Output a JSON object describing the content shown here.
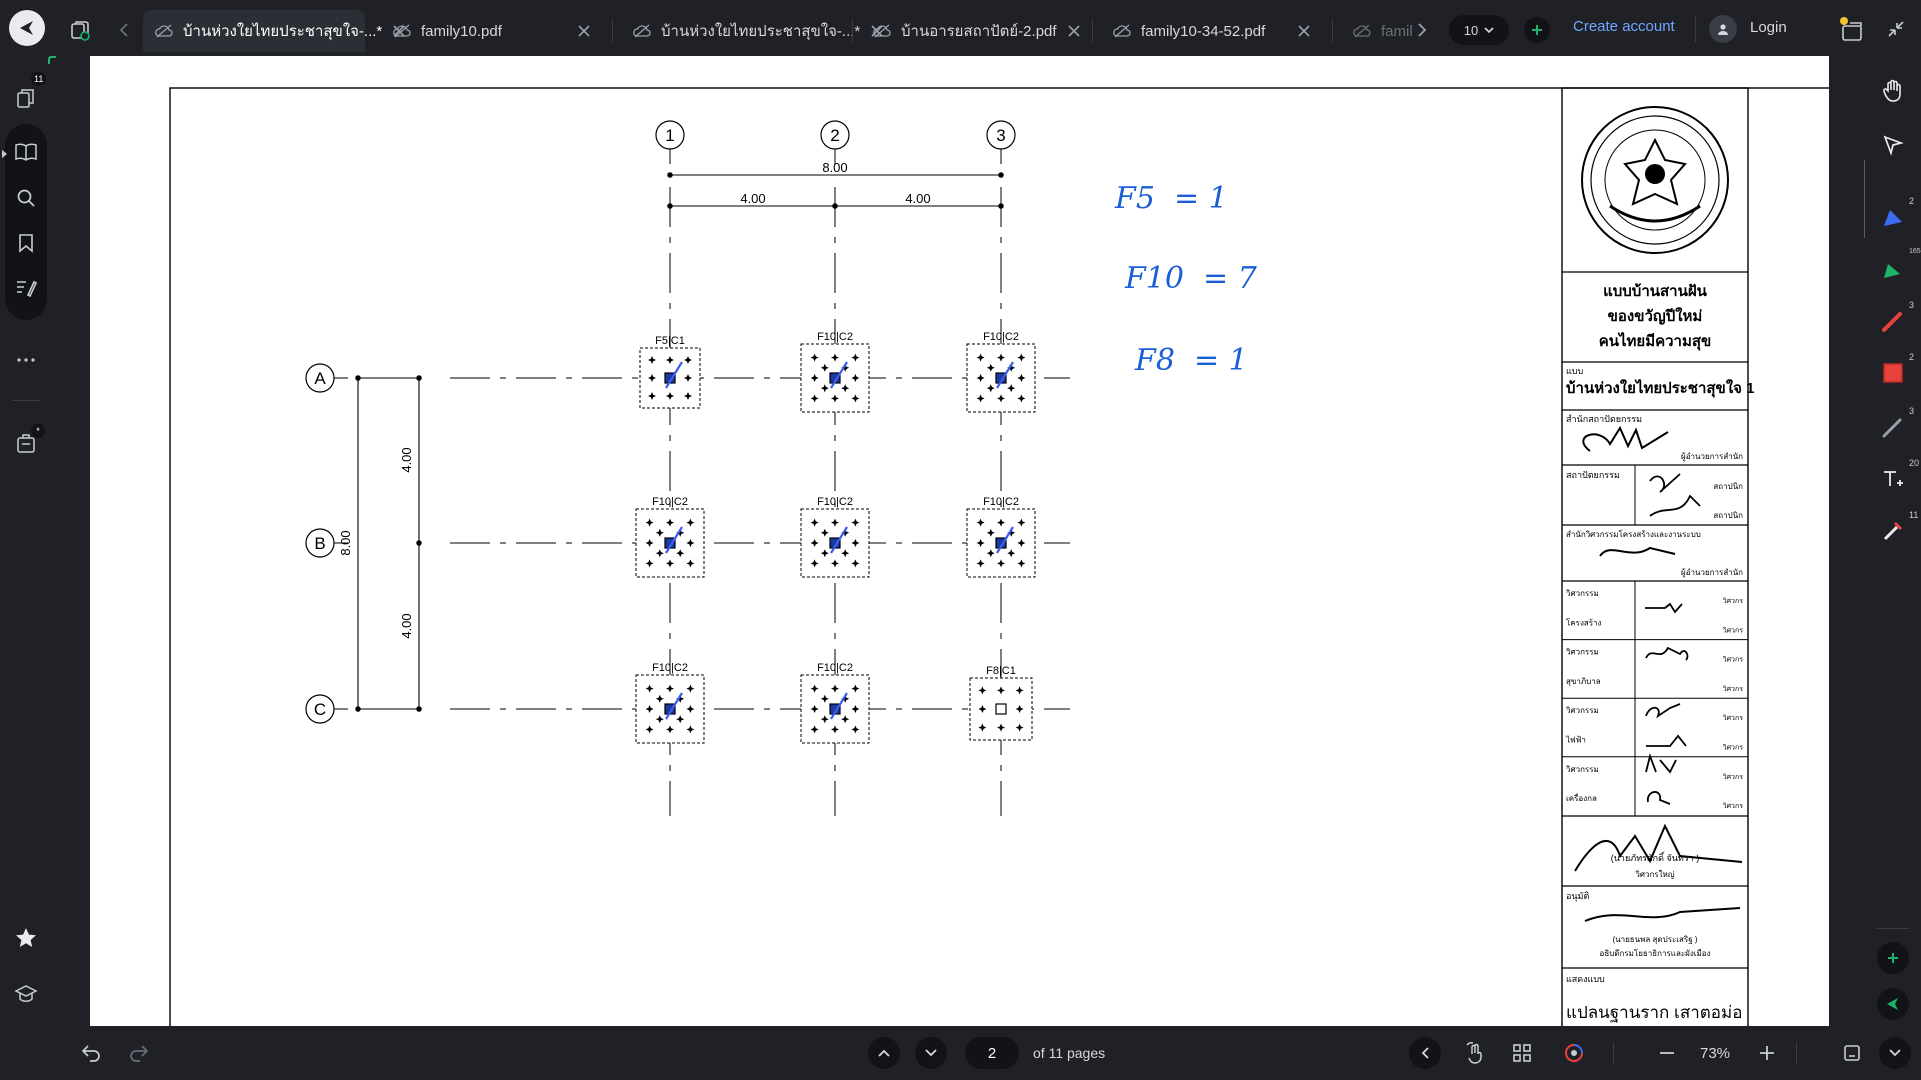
{
  "tabs": [
    {
      "label": "บ้านห่วงใยไทยประชาสุขใจ-...*",
      "active": true
    },
    {
      "label": "family10.pdf",
      "active": false
    },
    {
      "label": "บ้านห่วงใยไทยประชาสุขใจ-...*",
      "active": false
    },
    {
      "label": "บ้านอารยสถาปัตย์-2.pdf",
      "active": false
    },
    {
      "label": "family10-34-52.pdf",
      "active": false
    },
    {
      "label": "famil",
      "active": false
    }
  ],
  "tab_count": "10",
  "header": {
    "create_account": "Create account",
    "login": "Login"
  },
  "left_badges": {
    "pages": "11",
    "stamp": "*"
  },
  "right_counts": {
    "pen_blue": "2",
    "highlighter_green": "165",
    "pen_red": "3",
    "rect_red": "2",
    "pencil": "3",
    "text": "20",
    "eraser": "11"
  },
  "pagination": {
    "current_page": "2",
    "total_label": "of 11 pages"
  },
  "zoom": "73%",
  "drawing": {
    "grid_cols": [
      "1",
      "2",
      "3"
    ],
    "grid_rows": [
      "A",
      "B",
      "C"
    ],
    "dim_total_h": "8.00",
    "dim_h_1": "4.00",
    "dim_h_2": "4.00",
    "dim_total_v": "8.00",
    "dim_v_1": "4.00",
    "dim_v_2": "4.00",
    "footings": [
      {
        "label": "F5|C1"
      },
      {
        "label": "F10|C2"
      },
      {
        "label": "F10|C2"
      },
      {
        "label": "F10|C2"
      },
      {
        "label": "F10|C2"
      },
      {
        "label": "F10|C2"
      },
      {
        "label": "F10|C2"
      },
      {
        "label": "F10|C2"
      },
      {
        "label": "F8|C1"
      }
    ],
    "handwritten_notes": [
      "F5  = 1",
      "F10  = 7",
      "F8  = 1"
    ]
  },
  "title_block": {
    "project_title_lines": [
      "แบบบ้านสานฝัน",
      "ของขวัญปีใหม่",
      "คนไทยมีความสุข"
    ],
    "model_label": "แบบ",
    "model_name": "บ้านห่วงใยไทยประชาสุขใจ 1",
    "office_arch": "สำนักสถาปัตยกรรม",
    "office_arch_role": "ผู้อำนวยการสำนัก",
    "architects": "สถาปัตยกรรม",
    "architect_role_1": "สถาปนิก",
    "architect_role_2": "สถาปนิก",
    "office_eng": "สำนักวิศวกรรมโครงสร้างและงานระบบ",
    "office_eng_role": "ผู้อำนวยการสำนัก",
    "eng_rows": [
      {
        "left": "วิศวกรรม",
        "right": "วิศวกร"
      },
      {
        "left": "โครงสร้าง",
        "right": "วิศวกร"
      },
      {
        "left": "วิศวกรรม",
        "right": "วิศวกร"
      },
      {
        "left": "สุขาภิบาล",
        "right": "วิศวกร"
      },
      {
        "left": "วิศวกรรม",
        "right": "วิศวกร"
      },
      {
        "left": "ไฟฟ้า",
        "right": "วิศวกร"
      },
      {
        "left": "วิศวกรรม",
        "right": "วิศวกร"
      },
      {
        "left": "เครื่องกล",
        "right": "วิศวกร"
      }
    ],
    "chief_name": "(นายภัทรศักดิ์  จันทรา )",
    "chief_role": "วิศวกรใหญ่",
    "approve_label": "อนุมัติ",
    "approver_name": "(นายธนพล  สุดประเสริฐ )",
    "approver_role": "อธิบดีกรมโยธาธิการและผังเมือง",
    "sheet_label": "แสดงแบบ",
    "sheet_title": "แปลนฐานราก เสาตอม่อ"
  },
  "colors": {
    "bg": "#1f2126",
    "accent": "#6ea8ff",
    "ink": "#1a5fd6",
    "red": "#e8413c",
    "green": "#1fb36b"
  }
}
